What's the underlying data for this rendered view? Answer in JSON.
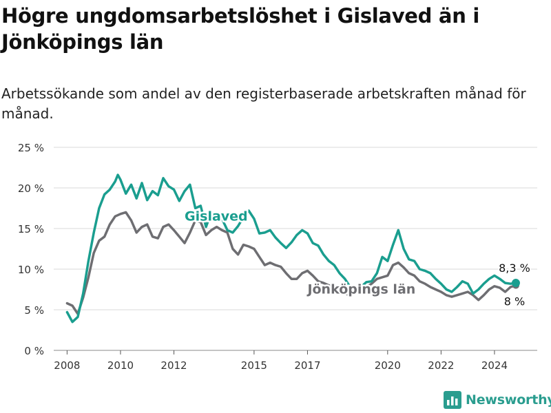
{
  "title": "Högre ungdomsarbetslöshet i Gislaved än i Jönköpings län",
  "subtitle": "Arbetssökande som andel av den registerbaserade arbetskraften månad för månad.",
  "brand": "Newsworthy",
  "colors": {
    "gislaved": "#1a9e8f",
    "jonkoping": "#6e6e72",
    "grid": "#d9d9d9",
    "axis": "#333333",
    "brand": "#2a9d8f"
  },
  "chart_data": {
    "type": "line",
    "y_unit": "%",
    "ylim": [
      0,
      25
    ],
    "y_ticks": [
      0,
      5,
      10,
      15,
      20,
      25
    ],
    "y_tick_labels": [
      "0 %",
      "5 %",
      "10 %",
      "15 %",
      "20 %",
      "25 %"
    ],
    "xlim": [
      2007.5,
      2025.6
    ],
    "x_ticks": [
      2008,
      2010,
      2012,
      2015,
      2017,
      2020,
      2022,
      2024
    ],
    "x_tick_labels": [
      "2008",
      "2010",
      "2012",
      "2015",
      "2017",
      "2020",
      "2022",
      "2024"
    ],
    "grid": "horizontal",
    "series": [
      {
        "name": "Gislaved",
        "color": "#1a9e8f",
        "end_label": "8,3 %",
        "x": [
          2008.0,
          2008.2,
          2008.4,
          2008.6,
          2008.8,
          2009.0,
          2009.2,
          2009.4,
          2009.6,
          2009.8,
          2009.9,
          2010.0,
          2010.2,
          2010.4,
          2010.6,
          2010.8,
          2011.0,
          2011.2,
          2011.4,
          2011.6,
          2011.8,
          2012.0,
          2012.2,
          2012.4,
          2012.6,
          2012.8,
          2013.0,
          2013.2,
          2013.4,
          2013.6,
          2013.8,
          2014.0,
          2014.2,
          2014.4,
          2014.6,
          2014.8,
          2015.0,
          2015.2,
          2015.4,
          2015.6,
          2015.8,
          2016.0,
          2016.2,
          2016.4,
          2016.6,
          2016.8,
          2017.0,
          2017.2,
          2017.4,
          2017.6,
          2017.8,
          2018.0,
          2018.2,
          2018.4,
          2018.6,
          2018.8,
          2019.0,
          2019.2,
          2019.4,
          2019.6,
          2019.8,
          2020.0,
          2020.2,
          2020.4,
          2020.6,
          2020.8,
          2021.0,
          2021.2,
          2021.4,
          2021.6,
          2021.8,
          2022.0,
          2022.2,
          2022.4,
          2022.6,
          2022.8,
          2023.0,
          2023.2,
          2023.4,
          2023.6,
          2023.8,
          2024.0,
          2024.2,
          2024.4,
          2024.6,
          2024.8
        ],
        "values": [
          4.7,
          3.5,
          4.1,
          7.0,
          11.0,
          14.5,
          17.5,
          19.2,
          19.8,
          20.8,
          21.6,
          21.0,
          19.3,
          20.4,
          18.7,
          20.6,
          18.5,
          19.6,
          19.1,
          21.2,
          20.2,
          19.8,
          18.4,
          19.6,
          20.4,
          17.5,
          17.8,
          15.2,
          17.0,
          16.5,
          16.2,
          14.8,
          14.5,
          15.3,
          16.4,
          17.2,
          16.2,
          14.4,
          14.5,
          14.8,
          13.9,
          13.2,
          12.6,
          13.3,
          14.2,
          14.8,
          14.4,
          13.2,
          12.9,
          11.8,
          11.0,
          10.5,
          9.5,
          8.8,
          7.8,
          7.5,
          7.8,
          8.4,
          8.5,
          9.5,
          11.5,
          11.0,
          13.0,
          14.8,
          12.5,
          11.2,
          11.0,
          10.0,
          9.8,
          9.5,
          8.8,
          8.2,
          7.5,
          7.2,
          7.8,
          8.5,
          8.2,
          7.0,
          7.5,
          8.2,
          8.8,
          9.2,
          8.8,
          8.3,
          8.2,
          8.3
        ]
      },
      {
        "name": "Jönköpings län",
        "color": "#6e6e72",
        "end_label": "8 %",
        "x": [
          2008.0,
          2008.2,
          2008.4,
          2008.6,
          2008.8,
          2009.0,
          2009.2,
          2009.4,
          2009.6,
          2009.8,
          2010.0,
          2010.2,
          2010.4,
          2010.6,
          2010.8,
          2011.0,
          2011.2,
          2011.4,
          2011.6,
          2011.8,
          2012.0,
          2012.2,
          2012.4,
          2012.6,
          2012.8,
          2013.0,
          2013.2,
          2013.4,
          2013.6,
          2013.8,
          2014.0,
          2014.2,
          2014.4,
          2014.6,
          2014.8,
          2015.0,
          2015.2,
          2015.4,
          2015.6,
          2015.8,
          2016.0,
          2016.2,
          2016.4,
          2016.6,
          2016.8,
          2017.0,
          2017.2,
          2017.4,
          2017.6,
          2017.8,
          2018.0,
          2018.2,
          2018.4,
          2018.6,
          2018.8,
          2019.0,
          2019.2,
          2019.4,
          2019.6,
          2019.8,
          2020.0,
          2020.2,
          2020.4,
          2020.6,
          2020.8,
          2021.0,
          2021.2,
          2021.4,
          2021.6,
          2021.8,
          2022.0,
          2022.2,
          2022.4,
          2022.6,
          2022.8,
          2023.0,
          2023.2,
          2023.4,
          2023.6,
          2023.8,
          2024.0,
          2024.2,
          2024.4,
          2024.6,
          2024.8
        ],
        "values": [
          5.8,
          5.5,
          4.5,
          6.5,
          9.0,
          12.0,
          13.5,
          14.0,
          15.5,
          16.5,
          16.8,
          17.0,
          16.0,
          14.5,
          15.2,
          15.5,
          14.0,
          13.8,
          15.2,
          15.5,
          14.8,
          14.0,
          13.2,
          14.5,
          16.0,
          15.8,
          14.2,
          14.8,
          15.2,
          14.8,
          14.5,
          12.5,
          11.8,
          13.0,
          12.8,
          12.5,
          11.5,
          10.5,
          10.8,
          10.5,
          10.3,
          9.5,
          8.8,
          8.8,
          9.5,
          9.8,
          9.2,
          8.5,
          8.3,
          8.0,
          7.8,
          7.5,
          7.0,
          6.8,
          7.2,
          7.5,
          7.8,
          8.2,
          8.8,
          9.0,
          9.2,
          10.5,
          10.8,
          10.2,
          9.5,
          9.2,
          8.5,
          8.2,
          7.8,
          7.5,
          7.2,
          6.8,
          6.6,
          6.8,
          7.0,
          7.2,
          6.8,
          6.2,
          6.8,
          7.5,
          7.9,
          7.7,
          7.2,
          7.8,
          8.0
        ]
      }
    ],
    "annotations": [
      {
        "series": "Gislaved",
        "text": "Gislaved",
        "x": 2012.4,
        "y": 16.5
      },
      {
        "series": "Jönköpings län",
        "text": "Jönköpings län",
        "x": 2017.0,
        "y": 7.5
      }
    ]
  }
}
